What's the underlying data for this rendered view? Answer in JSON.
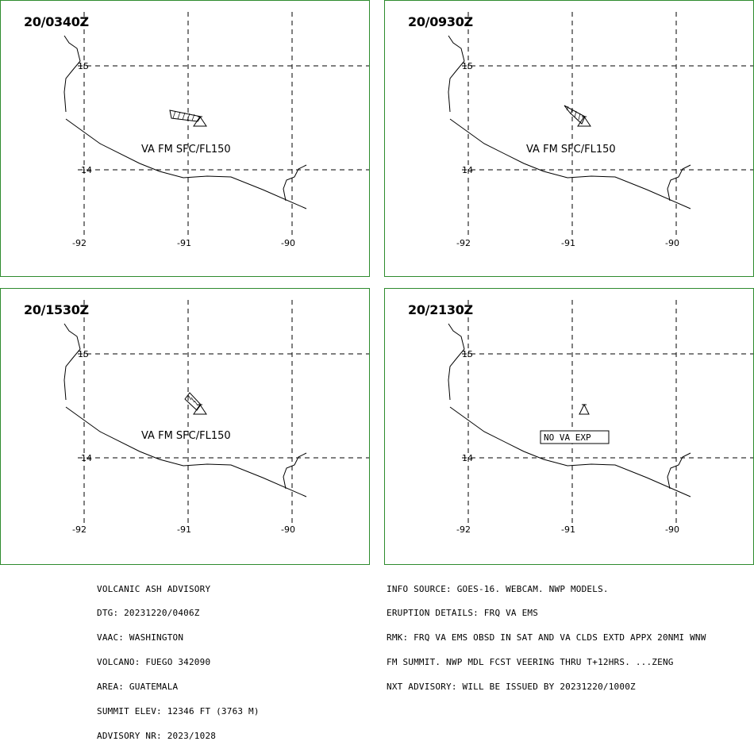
{
  "panels": [
    {
      "time": "20/0340Z",
      "label": "VA FM SFC/FL150",
      "arrow": "wnw"
    },
    {
      "time": "20/0930Z",
      "label": "VA FM SFC/FL150",
      "arrow": "nw"
    },
    {
      "time": "20/1530Z",
      "label": "VA FM SFC/FL150",
      "arrow": "nw"
    },
    {
      "time": "20/2130Z",
      "label": "NO VA EXP",
      "arrow": "none"
    }
  ],
  "axes": {
    "lon_labels": [
      "-92",
      "-91",
      "-90"
    ],
    "lat_labels": [
      "15",
      "14"
    ]
  },
  "advisory_left": [
    "VOLCANIC ASH ADVISORY",
    "DTG: 20231220/0406Z",
    "VAAC: WASHINGTON",
    "VOLCANO: FUEGO 342090",
    "AREA: GUATEMALA",
    "SUMMIT ELEV: 12346 FT (3763 M)",
    "ADVISORY NR: 2023/1028"
  ],
  "advisory_right": [
    "INFO SOURCE: GOES-16. WEBCAM. NWP MODELS.",
    "ERUPTION DETAILS: FRQ VA EMS",
    "RMK: FRQ VA EMS OBSD IN SAT AND VA CLDS EXTD APPX 20NMI WNW",
    "FM SUMMIT. NWP MDL FCST VEERING THRU T+12HRS. ...ZENG",
    "NXT ADVISORY: WILL BE ISSUED BY 20231220/1000Z"
  ],
  "colors": {
    "panel_border": "#2e8b2e",
    "ink": "#000000"
  }
}
